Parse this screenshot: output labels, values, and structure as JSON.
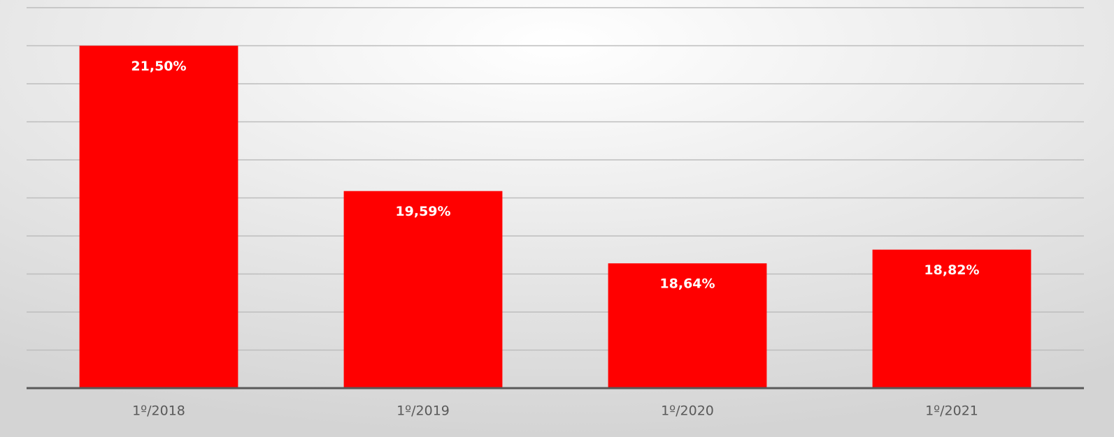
{
  "chart_data": {
    "type": "bar",
    "categories": [
      "1º/2018",
      "1º/2019",
      "1º/2020",
      "1º/2021"
    ],
    "values": [
      21.5,
      19.59,
      18.64,
      18.82
    ],
    "value_labels": [
      "21,50%",
      "19,59%",
      "18,64%",
      "18,82%"
    ],
    "color": "#ff0000",
    "ylim": [
      17,
      22
    ],
    "yticks": [
      17,
      17.5,
      18,
      18.5,
      19,
      19.5,
      20,
      20.5,
      21,
      21.5,
      22
    ],
    "grid": true
  }
}
